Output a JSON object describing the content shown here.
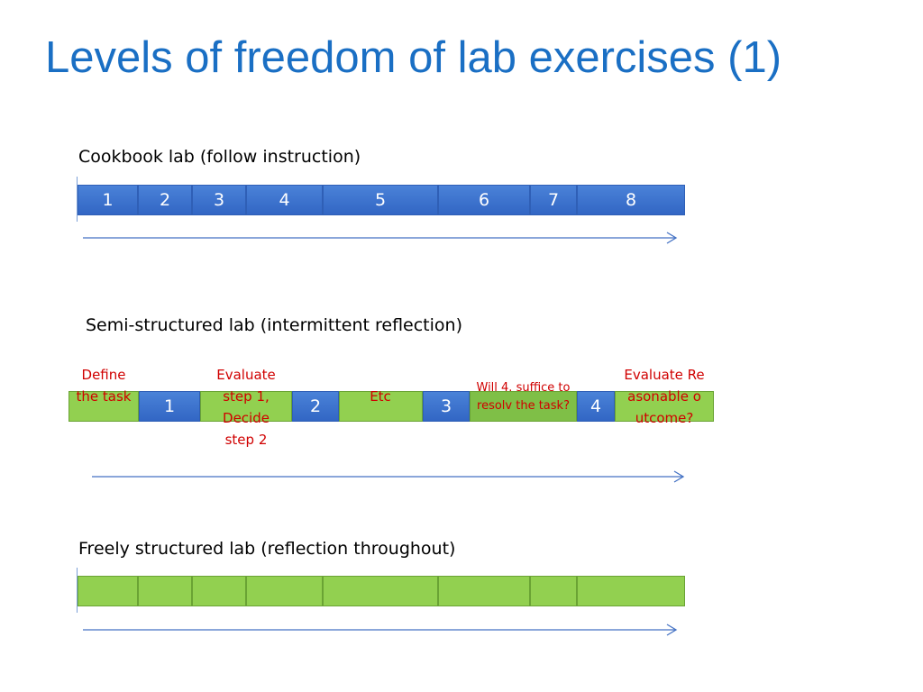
{
  "slide": {
    "title": "Levels of freedom of lab exercises (1)"
  },
  "cookbook": {
    "label": "Cookbook lab (follow instruction)",
    "steps": [
      "1",
      "2",
      "3",
      "4",
      "5",
      "6",
      "7",
      "8"
    ]
  },
  "semi": {
    "label": "Semi-structured lab (intermittent reflection)",
    "steps": [
      "1",
      "2",
      "3",
      "4"
    ],
    "notes": {
      "define": "Define the task",
      "evaluate_step": "Evaluate step 1, Decide step 2",
      "etc": "Etc",
      "will": "Will 4. suffice to resolv the task?",
      "evaluate_outcome": "Evaluate Reasonable outcome?"
    }
  },
  "free": {
    "label": "Freely structured lab (reflection throughout)"
  },
  "colors": {
    "title": "#1a6fc4",
    "step_blue": "#3266c4",
    "reflection_green": "#92d050",
    "note_red": "#d00000",
    "arrow": "#4472c4"
  }
}
